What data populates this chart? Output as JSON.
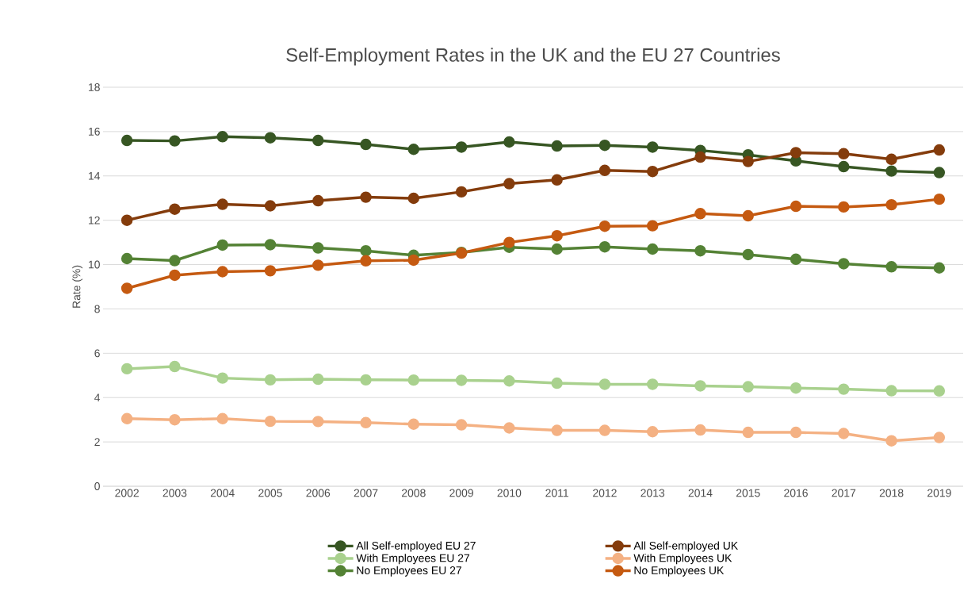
{
  "chart_data": {
    "type": "line",
    "title": "Self-Employment Rates in the UK and the EU 27 Countries",
    "ylabel": "Rate (%)",
    "categories": [
      "2002",
      "2003",
      "2004",
      "2005",
      "2006",
      "2007",
      "2008",
      "2009",
      "2010",
      "2011",
      "2012",
      "2013",
      "2014",
      "2015",
      "2016",
      "2017",
      "2018",
      "2019"
    ],
    "series": [
      {
        "name": "All Self-employed EU 27",
        "color": "#375623",
        "values": [
          15.6,
          15.58,
          15.77,
          15.72,
          15.6,
          15.42,
          15.2,
          15.3,
          15.53,
          15.35,
          15.38,
          15.3,
          15.15,
          14.95,
          14.68,
          14.42,
          14.22,
          14.15
        ]
      },
      {
        "name": "All Self-employed UK",
        "color": "#843c0c",
        "values": [
          12.0,
          12.5,
          12.72,
          12.65,
          12.88,
          13.04,
          12.99,
          13.28,
          13.65,
          13.82,
          14.25,
          14.2,
          14.85,
          14.65,
          15.05,
          15.0,
          14.75,
          15.17
        ]
      },
      {
        "name": "With Employees EU 27",
        "color": "#a9d18e",
        "values": [
          5.3,
          5.4,
          4.88,
          4.8,
          4.83,
          4.8,
          4.79,
          4.78,
          4.75,
          4.65,
          4.6,
          4.6,
          4.53,
          4.49,
          4.43,
          4.38,
          4.31,
          4.3
        ]
      },
      {
        "name": "With Employees UK",
        "color": "#f4b183",
        "values": [
          3.05,
          3.0,
          3.05,
          2.93,
          2.92,
          2.87,
          2.8,
          2.77,
          2.63,
          2.52,
          2.52,
          2.46,
          2.54,
          2.43,
          2.43,
          2.38,
          2.05,
          2.2
        ]
      },
      {
        "name": "No Employees EU 27",
        "color": "#548235",
        "values": [
          10.27,
          10.18,
          10.88,
          10.9,
          10.75,
          10.62,
          10.42,
          10.55,
          10.78,
          10.7,
          10.8,
          10.7,
          10.62,
          10.45,
          10.24,
          10.04,
          9.9,
          9.85
        ]
      },
      {
        "name": "No Employees UK",
        "color": "#c55a11",
        "values": [
          8.93,
          9.52,
          9.68,
          9.72,
          9.97,
          10.17,
          10.2,
          10.52,
          11.0,
          11.3,
          11.73,
          11.75,
          12.3,
          12.2,
          12.63,
          12.6,
          12.7,
          12.95
        ]
      }
    ],
    "ylim": [
      0,
      18
    ],
    "yticks": [
      0,
      2,
      4,
      6,
      8,
      10,
      12,
      14,
      16,
      18
    ],
    "grid": "y",
    "legend": "bottom",
    "marker": "circle",
    "line_style": "solid"
  }
}
